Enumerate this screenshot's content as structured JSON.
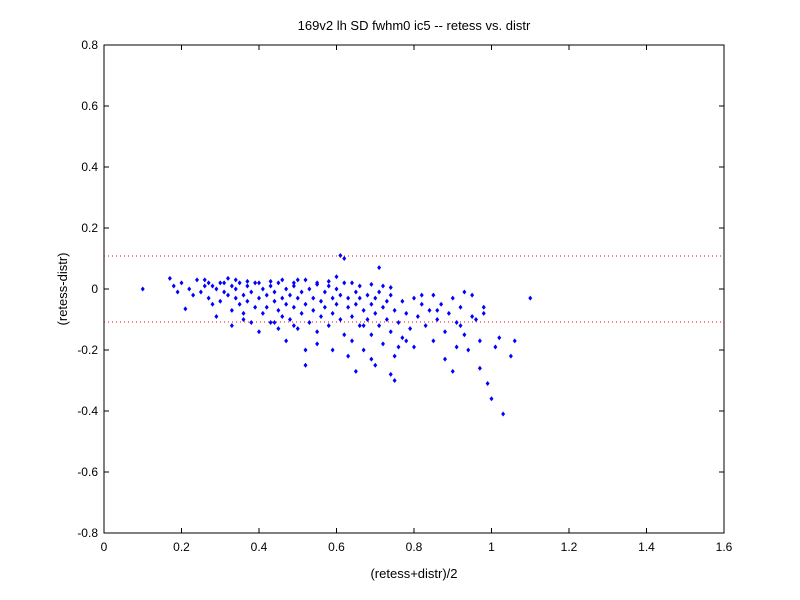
{
  "chart_data": {
    "type": "scatter",
    "title": "169v2 lh SD fwhm0 ic5 -- retess vs. distr",
    "xlabel": "(retess+distr)/2",
    "ylabel": "(retess-distr)",
    "xlim": [
      0,
      1.6
    ],
    "ylim": [
      -0.8,
      0.8
    ],
    "xticks": [
      0,
      0.2,
      0.4,
      0.6,
      0.8,
      1,
      1.2,
      1.4,
      1.6
    ],
    "yticks": [
      -0.8,
      -0.6,
      -0.4,
      -0.2,
      0,
      0.2,
      0.4,
      0.6,
      0.8
    ],
    "xtick_labels": [
      "0",
      "0.2",
      "0.4",
      "0.6",
      "0.8",
      "1",
      "1.2",
      "1.4",
      "1.6"
    ],
    "ytick_labels": [
      "-0.8",
      "-0.6",
      "-0.4",
      "-0.2",
      "0",
      "0.2",
      "0.4",
      "0.6",
      "0.8"
    ],
    "grid": false,
    "reference_lines": [
      0.108,
      -0.108
    ],
    "colors": {
      "points": "#0000ff",
      "reference_lines": "#ff0000",
      "axes": "#000000"
    },
    "points": [
      [
        0.1,
        0.0
      ],
      [
        0.17,
        0.035
      ],
      [
        0.18,
        0.01
      ],
      [
        0.19,
        -0.01
      ],
      [
        0.2,
        0.02
      ],
      [
        0.21,
        -0.065
      ],
      [
        0.22,
        0.0
      ],
      [
        0.23,
        -0.02
      ],
      [
        0.24,
        0.03
      ],
      [
        0.25,
        -0.01
      ],
      [
        0.26,
        0.01
      ],
      [
        0.27,
        -0.03
      ],
      [
        0.27,
        0.02
      ],
      [
        0.28,
        -0.05
      ],
      [
        0.29,
        0.0
      ],
      [
        0.29,
        -0.09
      ],
      [
        0.3,
        0.02
      ],
      [
        0.3,
        -0.04
      ],
      [
        0.31,
        -0.01
      ],
      [
        0.32,
        -0.02
      ],
      [
        0.32,
        0.035
      ],
      [
        0.33,
        -0.07
      ],
      [
        0.33,
        0.01
      ],
      [
        0.34,
        -0.03
      ],
      [
        0.34,
        0.0
      ],
      [
        0.35,
        -0.05
      ],
      [
        0.35,
        0.02
      ],
      [
        0.36,
        -0.02
      ],
      [
        0.36,
        -0.08
      ],
      [
        0.37,
        0.01
      ],
      [
        0.37,
        -0.04
      ],
      [
        0.38,
        -0.01
      ],
      [
        0.38,
        -0.11
      ],
      [
        0.39,
        0.02
      ],
      [
        0.39,
        -0.06
      ],
      [
        0.4,
        -0.03
      ],
      [
        0.4,
        -0.14
      ],
      [
        0.41,
        0.0
      ],
      [
        0.41,
        -0.08
      ],
      [
        0.42,
        -0.02
      ],
      [
        0.42,
        -0.06
      ],
      [
        0.43,
        0.01
      ],
      [
        0.43,
        -0.11
      ],
      [
        0.44,
        -0.04
      ],
      [
        0.44,
        -0.01
      ],
      [
        0.45,
        -0.07
      ],
      [
        0.45,
        0.02
      ],
      [
        0.45,
        -0.13
      ],
      [
        0.46,
        -0.03
      ],
      [
        0.46,
        -0.09
      ],
      [
        0.47,
        0.0
      ],
      [
        0.47,
        -0.05
      ],
      [
        0.47,
        -0.17
      ],
      [
        0.48,
        -0.02
      ],
      [
        0.48,
        -0.1
      ],
      [
        0.49,
        0.01
      ],
      [
        0.49,
        -0.06
      ],
      [
        0.5,
        -0.03
      ],
      [
        0.5,
        -0.13
      ],
      [
        0.5,
        0.03
      ],
      [
        0.51,
        -0.08
      ],
      [
        0.51,
        -0.01
      ],
      [
        0.52,
        -0.05
      ],
      [
        0.52,
        -0.2
      ],
      [
        0.53,
        0.0
      ],
      [
        0.53,
        -0.11
      ],
      [
        0.54,
        -0.03
      ],
      [
        0.54,
        -0.07
      ],
      [
        0.55,
        0.02
      ],
      [
        0.55,
        -0.14
      ],
      [
        0.56,
        -0.04
      ],
      [
        0.56,
        -0.09
      ],
      [
        0.57,
        -0.01
      ],
      [
        0.57,
        -0.06
      ],
      [
        0.58,
        0.01
      ],
      [
        0.58,
        -0.12
      ],
      [
        0.59,
        -0.03
      ],
      [
        0.59,
        -0.08
      ],
      [
        0.6,
        0.0
      ],
      [
        0.6,
        -0.05
      ],
      [
        0.61,
        -0.1
      ],
      [
        0.61,
        -0.02
      ],
      [
        0.62,
        -0.15
      ],
      [
        0.62,
        0.02
      ],
      [
        0.63,
        -0.06
      ],
      [
        0.63,
        -0.03
      ],
      [
        0.64,
        -0.09
      ],
      [
        0.64,
        -0.17
      ],
      [
        0.65,
        -0.01
      ],
      [
        0.65,
        -0.05
      ],
      [
        0.66,
        -0.12
      ],
      [
        0.66,
        -0.03
      ],
      [
        0.67,
        -0.07
      ],
      [
        0.67,
        -0.2
      ],
      [
        0.68,
        -0.02
      ],
      [
        0.68,
        -0.1
      ],
      [
        0.69,
        -0.05
      ],
      [
        0.69,
        -0.15
      ],
      [
        0.7,
        -0.03
      ],
      [
        0.7,
        -0.08
      ],
      [
        0.71,
        -0.12
      ],
      [
        0.71,
        -0.01
      ],
      [
        0.72,
        -0.06
      ],
      [
        0.72,
        -0.18
      ],
      [
        0.73,
        -0.04
      ],
      [
        0.73,
        -0.1
      ],
      [
        0.74,
        -0.14
      ],
      [
        0.74,
        -0.02
      ],
      [
        0.75,
        -0.07
      ],
      [
        0.75,
        -0.22
      ],
      [
        0.76,
        -0.11
      ],
      [
        0.77,
        -0.04
      ],
      [
        0.77,
        -0.16
      ],
      [
        0.78,
        -0.08
      ],
      [
        0.79,
        -0.13
      ],
      [
        0.8,
        -0.03
      ],
      [
        0.8,
        -0.19
      ],
      [
        0.81,
        -0.09
      ],
      [
        0.82,
        -0.05
      ],
      [
        0.83,
        -0.12
      ],
      [
        0.84,
        -0.07
      ],
      [
        0.85,
        -0.02
      ],
      [
        0.85,
        -0.17
      ],
      [
        0.86,
        -0.1
      ],
      [
        0.87,
        -0.05
      ],
      [
        0.88,
        -0.14
      ],
      [
        0.89,
        -0.08
      ],
      [
        0.9,
        -0.03
      ],
      [
        0.91,
        -0.11
      ],
      [
        0.92,
        -0.06
      ],
      [
        0.93,
        -0.15
      ],
      [
        0.95,
        -0.02
      ],
      [
        0.95,
        -0.09
      ],
      [
        0.97,
        -0.26
      ],
      [
        0.98,
        -0.08
      ],
      [
        0.99,
        -0.31
      ],
      [
        1.0,
        -0.36
      ],
      [
        1.01,
        -0.19
      ],
      [
        1.02,
        -0.16
      ],
      [
        1.03,
        -0.41
      ],
      [
        1.05,
        -0.22
      ],
      [
        1.06,
        -0.17
      ],
      [
        1.1,
        -0.03
      ],
      [
        0.33,
        -0.12
      ],
      [
        0.36,
        -0.1
      ],
      [
        0.44,
        -0.11
      ],
      [
        0.49,
        -0.12
      ],
      [
        0.52,
        -0.25
      ],
      [
        0.55,
        -0.18
      ],
      [
        0.59,
        -0.2
      ],
      [
        0.61,
        0.11
      ],
      [
        0.62,
        0.1
      ],
      [
        0.63,
        -0.22
      ],
      [
        0.65,
        -0.27
      ],
      [
        0.67,
        -0.12
      ],
      [
        0.69,
        -0.23
      ],
      [
        0.7,
        -0.25
      ],
      [
        0.71,
        0.07
      ],
      [
        0.74,
        -0.28
      ],
      [
        0.75,
        -0.3
      ],
      [
        0.76,
        -0.19
      ],
      [
        0.78,
        -0.17
      ],
      [
        0.82,
        -0.02
      ],
      [
        0.86,
        -0.07
      ],
      [
        0.88,
        -0.23
      ],
      [
        0.9,
        -0.27
      ],
      [
        0.92,
        -0.12
      ],
      [
        0.94,
        -0.2
      ],
      [
        0.96,
        -0.1
      ],
      [
        0.98,
        -0.06
      ],
      [
        0.93,
        -0.01
      ],
      [
        0.91,
        -0.19
      ],
      [
        0.97,
        -0.17
      ],
      [
        0.26,
        0.03
      ],
      [
        0.28,
        0.01
      ],
      [
        0.31,
        0.02
      ],
      [
        0.34,
        0.03
      ],
      [
        0.37,
        0.025
      ],
      [
        0.4,
        0.02
      ],
      [
        0.43,
        0.025
      ],
      [
        0.46,
        0.03
      ],
      [
        0.49,
        0.02
      ],
      [
        0.52,
        0.03
      ],
      [
        0.55,
        0.015
      ],
      [
        0.58,
        0.025
      ],
      [
        0.6,
        0.04
      ],
      [
        0.64,
        0.02
      ],
      [
        0.66,
        0.01
      ],
      [
        0.69,
        0.015
      ],
      [
        0.72,
        0.01
      ],
      [
        0.74,
        0.005
      ]
    ]
  }
}
